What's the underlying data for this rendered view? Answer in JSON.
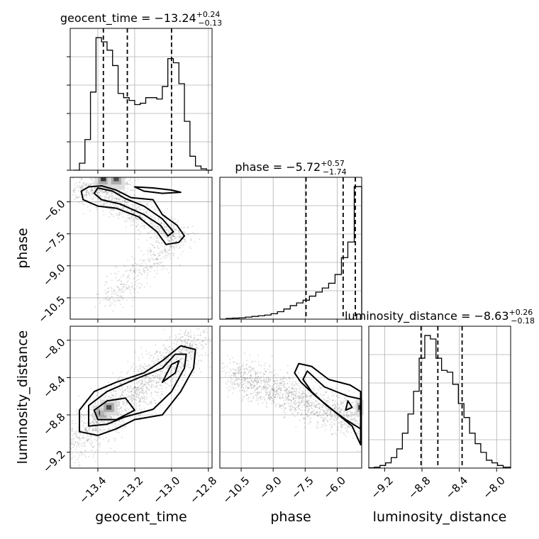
{
  "chart_data": {
    "type": "corner",
    "parameters": [
      {
        "name": "geocent_time",
        "label": "geocent_time",
        "title": {
          "prefix": "geocent_time = ",
          "median": "−13.24",
          "plus": "+0.24",
          "minus": "−0.13"
        },
        "quantiles": [
          -13.37,
          -13.24,
          -13.0
        ],
        "range": [
          -13.55,
          -12.78
        ],
        "ticks": [
          -13.4,
          -13.2,
          -13.0,
          -12.8
        ],
        "tick_labels": [
          "−13.4",
          "−13.2",
          "−13.0",
          "−12.8"
        ],
        "hist_bins": [
          -13.53,
          -13.5,
          -13.47,
          -13.44,
          -13.41,
          -13.38,
          -13.35,
          -13.32,
          -13.29,
          -13.26,
          -13.23,
          -13.2,
          -13.17,
          -13.14,
          -13.11,
          -13.08,
          -13.05,
          -13.02,
          -12.99,
          -12.96,
          -12.93,
          -12.9,
          -12.87,
          -12.84,
          -12.81,
          -12.78
        ],
        "hist_counts": [
          0,
          0.5,
          2.2,
          5.6,
          9.5,
          9.2,
          8.6,
          7.5,
          5.5,
          5.2,
          5.0,
          4.7,
          4.8,
          5.2,
          5.2,
          5.1,
          6.0,
          8.0,
          7.7,
          6.2,
          3.5,
          1.0,
          0.3,
          0.1,
          0
        ]
      },
      {
        "name": "phase",
        "label": "phase",
        "title": {
          "prefix": "phase = ",
          "median": "−5.72",
          "plus": "+0.57",
          "minus": "−1.74"
        },
        "quantiles": [
          -7.46,
          -5.72,
          -5.15
        ],
        "range": [
          -11.5,
          -4.85
        ],
        "ticks": [
          -10.5,
          -9.0,
          -7.5,
          -6.0
        ],
        "tick_labels": [
          "−10.5",
          "−9.0",
          "−7.5",
          "−6.0"
        ],
        "hist_bins": [
          -11.5,
          -11.2,
          -10.9,
          -10.6,
          -10.3,
          -10.0,
          -9.7,
          -9.4,
          -9.1,
          -8.8,
          -8.5,
          -8.2,
          -7.9,
          -7.6,
          -7.3,
          -7.0,
          -6.7,
          -6.4,
          -6.1,
          -5.8,
          -5.5,
          -5.2,
          -4.85
        ],
        "hist_counts": [
          0,
          0.1,
          0.15,
          0.2,
          0.3,
          0.4,
          0.5,
          0.6,
          0.8,
          1.1,
          1.5,
          2.0,
          2.4,
          2.8,
          3.4,
          4.0,
          4.6,
          5.3,
          6.6,
          9.1,
          11.4,
          19.6
        ]
      },
      {
        "name": "luminosity_distance",
        "label": "luminosity_distance",
        "title": {
          "prefix": "luminosity_distance = ",
          "median": "−8.63",
          "plus": "+0.26",
          "minus": "−0.18"
        },
        "quantiles": [
          -8.81,
          -8.63,
          -8.37
        ],
        "range": [
          -9.37,
          -7.85
        ],
        "ticks": [
          -9.2,
          -8.8,
          -8.4,
          -8.0
        ],
        "tick_labels": [
          "−9.2",
          "−8.8",
          "−8.4",
          "−8.0"
        ],
        "hist_bins": [
          -9.37,
          -9.31,
          -9.25,
          -9.19,
          -9.13,
          -9.07,
          -9.01,
          -8.95,
          -8.89,
          -8.83,
          -8.77,
          -8.71,
          -8.65,
          -8.59,
          -8.53,
          -8.47,
          -8.41,
          -8.35,
          -8.29,
          -8.23,
          -8.17,
          -8.11,
          -8.05,
          -7.99,
          -7.93,
          -7.85
        ],
        "hist_counts": [
          0.02,
          0.05,
          0.15,
          0.3,
          0.6,
          1.1,
          2.0,
          3.1,
          4.4,
          6.3,
          7.6,
          7.4,
          6.3,
          5.6,
          5.5,
          4.8,
          3.7,
          2.9,
          2.0,
          1.4,
          0.9,
          0.45,
          0.3,
          0.15,
          0.05
        ]
      }
    ],
    "contours_2d": {
      "phase_vs_geocent_time": [
        [
          [
            -13.45,
            -5.3
          ],
          [
            -13.38,
            -5.25
          ],
          [
            -13.3,
            -5.45
          ],
          [
            -13.22,
            -5.8
          ],
          [
            -13.1,
            -5.9
          ],
          [
            -13.05,
            -6.6
          ],
          [
            -12.97,
            -7.1
          ],
          [
            -12.93,
            -7.6
          ],
          [
            -12.96,
            -7.9
          ],
          [
            -13.03,
            -8.0
          ],
          [
            -13.08,
            -7.4
          ],
          [
            -13.18,
            -6.7
          ],
          [
            -13.3,
            -6.3
          ],
          [
            -13.4,
            -6.2
          ],
          [
            -13.48,
            -5.9
          ],
          [
            -13.49,
            -5.5
          ],
          [
            -13.45,
            -5.3
          ]
        ],
        [
          [
            -13.4,
            -5.35
          ],
          [
            -13.32,
            -5.5
          ],
          [
            -13.25,
            -5.85
          ],
          [
            -13.15,
            -6.2
          ],
          [
            -13.05,
            -6.8
          ],
          [
            -12.99,
            -7.4
          ],
          [
            -13.02,
            -7.6
          ],
          [
            -13.06,
            -7.1
          ],
          [
            -13.15,
            -6.6
          ],
          [
            -13.28,
            -6.1
          ],
          [
            -13.38,
            -5.9
          ],
          [
            -13.42,
            -5.6
          ],
          [
            -13.4,
            -5.35
          ]
        ],
        [
          [
            -13.2,
            -5.3
          ],
          [
            -13.1,
            -5.35
          ],
          [
            -13.0,
            -5.45
          ],
          [
            -12.95,
            -5.55
          ],
          [
            -13.05,
            -5.6
          ],
          [
            -13.15,
            -5.5
          ],
          [
            -13.2,
            -5.3
          ]
        ]
      ],
      "lum_vs_geocent_time": [
        [
          [
            -13.5,
            -8.98
          ],
          [
            -13.4,
            -9.02
          ],
          [
            -13.3,
            -8.95
          ],
          [
            -13.2,
            -8.85
          ],
          [
            -13.05,
            -8.8
          ],
          [
            -12.95,
            -8.55
          ],
          [
            -12.88,
            -8.3
          ],
          [
            -12.87,
            -8.1
          ],
          [
            -12.95,
            -8.06
          ],
          [
            -13.05,
            -8.22
          ],
          [
            -13.15,
            -8.35
          ],
          [
            -13.3,
            -8.45
          ],
          [
            -13.42,
            -8.55
          ],
          [
            -13.5,
            -8.75
          ],
          [
            -13.5,
            -8.98
          ]
        ],
        [
          [
            -13.45,
            -8.92
          ],
          [
            -13.35,
            -8.9
          ],
          [
            -13.25,
            -8.82
          ],
          [
            -13.1,
            -8.74
          ],
          [
            -13.0,
            -8.55
          ],
          [
            -12.93,
            -8.3
          ],
          [
            -12.92,
            -8.15
          ],
          [
            -12.98,
            -8.15
          ],
          [
            -13.05,
            -8.3
          ],
          [
            -13.2,
            -8.42
          ],
          [
            -13.35,
            -8.55
          ],
          [
            -13.45,
            -8.7
          ],
          [
            -13.45,
            -8.92
          ]
        ],
        [
          [
            -13.4,
            -8.85
          ],
          [
            -13.3,
            -8.85
          ],
          [
            -13.2,
            -8.75
          ],
          [
            -13.25,
            -8.62
          ],
          [
            -13.35,
            -8.65
          ],
          [
            -13.42,
            -8.75
          ],
          [
            -13.4,
            -8.85
          ]
        ],
        [
          [
            -13.05,
            -8.45
          ],
          [
            -12.98,
            -8.35
          ],
          [
            -12.96,
            -8.22
          ],
          [
            -13.0,
            -8.26
          ],
          [
            -13.05,
            -8.45
          ]
        ]
      ],
      "lum_vs_phase": [
        [
          [
            -7.8,
            -8.25
          ],
          [
            -7.2,
            -8.28
          ],
          [
            -6.4,
            -8.42
          ],
          [
            -5.4,
            -8.48
          ],
          [
            -4.9,
            -8.55
          ],
          [
            -4.9,
            -9.12
          ],
          [
            -5.3,
            -8.92
          ],
          [
            -6.2,
            -8.75
          ],
          [
            -7.0,
            -8.6
          ],
          [
            -7.7,
            -8.45
          ],
          [
            -8.0,
            -8.35
          ],
          [
            -7.8,
            -8.25
          ]
        ],
        [
          [
            -7.4,
            -8.33
          ],
          [
            -6.6,
            -8.5
          ],
          [
            -5.5,
            -8.6
          ],
          [
            -4.9,
            -8.63
          ],
          [
            -4.9,
            -8.95
          ],
          [
            -5.6,
            -8.85
          ],
          [
            -6.5,
            -8.7
          ],
          [
            -7.2,
            -8.55
          ],
          [
            -7.6,
            -8.42
          ],
          [
            -7.4,
            -8.33
          ]
        ],
        [
          [
            -5.5,
            -8.65
          ],
          [
            -5.3,
            -8.72
          ],
          [
            -5.6,
            -8.75
          ],
          [
            -5.5,
            -8.65
          ]
        ]
      ]
    },
    "density_2d_peaks": {
      "phase_vs_geocent_time": [
        [
          -13.37,
          -4.95
        ],
        [
          -13.3,
          -4.95
        ]
      ],
      "lum_vs_geocent_time": [
        [
          -13.38,
          -8.78
        ],
        [
          -13.34,
          -8.72
        ]
      ],
      "lum_vs_phase": [
        [
          -4.95,
          -8.72
        ]
      ]
    },
    "scatter_extents": {
      "phase_vs_geocent_time": [
        [
          -13.35,
          -10.5
        ],
        [
          -13.2,
          -10.1
        ],
        [
          -13.05,
          -9.2
        ],
        [
          -12.95,
          -8.0
        ]
      ],
      "lum_vs_geocent_time": [
        [
          -13.55,
          -9.2
        ],
        [
          -12.85,
          -7.95
        ]
      ],
      "lum_vs_phase": [
        [
          -10.8,
          -8.35
        ],
        [
          -4.9,
          -9.2
        ]
      ]
    },
    "grid": true
  }
}
